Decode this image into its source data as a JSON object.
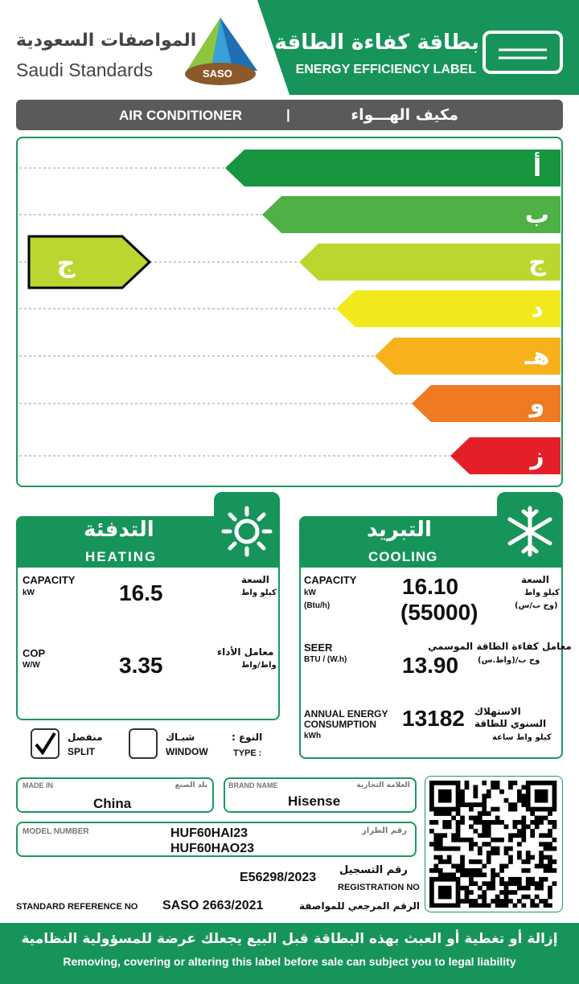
{
  "header": {
    "logo_ar": "المواصفات السعودية",
    "logo_en": "Saudi Standards",
    "saso": "SASO",
    "title_ar": "بطاقة كفاءة الطاقة",
    "title_en": "ENERGY EFFICIENCY LABEL"
  },
  "product": {
    "en": "AIR CONDITIONER",
    "separator": "|",
    "ar": "مكيف الهـــواء"
  },
  "scale": {
    "grades": [
      "أ",
      "ب",
      "ج",
      "د",
      "هـ",
      "و",
      "ز"
    ],
    "rating": "ج"
  },
  "heating": {
    "title_ar": "التدفئة",
    "title_en": "HEATING",
    "capacity": {
      "label": "CAPACITY",
      "unit": "kW",
      "label_ar": "السعة",
      "unit_ar": "كيلو واط",
      "value": "16.5"
    },
    "cop": {
      "label": "COP",
      "unit": "W/W",
      "label_ar": "معامل الأداء",
      "unit_ar": "واط/واط",
      "value": "3.35"
    }
  },
  "cooling": {
    "title_ar": "التبريد",
    "title_en": "COOLING",
    "capacity": {
      "label": "CAPACITY",
      "unit": "kW",
      "unit2": "(Btu/h)",
      "label_ar": "السعة",
      "unit_ar": "كيلو واط",
      "unit2_ar": "(وح ب/س)",
      "value": "16.10",
      "value2": "(55000)"
    },
    "seer": {
      "label": "SEER",
      "unit": "BTU / (W.h)",
      "label_ar": "معامل كفاءة الطاقة الموسمي",
      "unit_ar": "وح ب/(واط.س)",
      "value": "13.90"
    },
    "annual": {
      "label": "ANNUAL ENERGY CONSUMPTION",
      "unit": "kWh",
      "label_ar": "الاستهلاك السنوي للطاقة",
      "unit_ar": "كيلو واط ساعة",
      "value": "13182"
    }
  },
  "type": {
    "label_ar": "النوع :",
    "label_en": "TYPE :",
    "split_ar": "منفصل",
    "split_en": "SPLIT",
    "window_ar": "شبـاك",
    "window_en": "WINDOW"
  },
  "details": {
    "made_in": {
      "label": "MADE IN",
      "label_ar": "بلد الصنع",
      "value": "China"
    },
    "brand": {
      "label": "BRAND NAME",
      "label_ar": "العلامة التجارية",
      "value": "Hisense"
    },
    "model": {
      "label": "MODEL NUMBER",
      "label_ar": "رقم الطراز",
      "values": [
        "HUF60HAI23",
        "HUF60HAO23"
      ]
    },
    "registration": {
      "value": "E56298/2023",
      "label_ar": "رقم التسجيل",
      "label": "REGISTRATION NO"
    },
    "standard": {
      "label": "STANDARD REFERENCE NO",
      "value": "SASO 2663/2021",
      "label_ar": "الرقم المرجعي للمواصفة"
    }
  },
  "footer": {
    "ar": "إزالة أو تغطية أو العبث بهذه البطاقة قبل البيع يجعلك عرضة للمسؤولية النظامية",
    "en": "Removing, covering or altering this label before sale can subject you to legal liability"
  }
}
